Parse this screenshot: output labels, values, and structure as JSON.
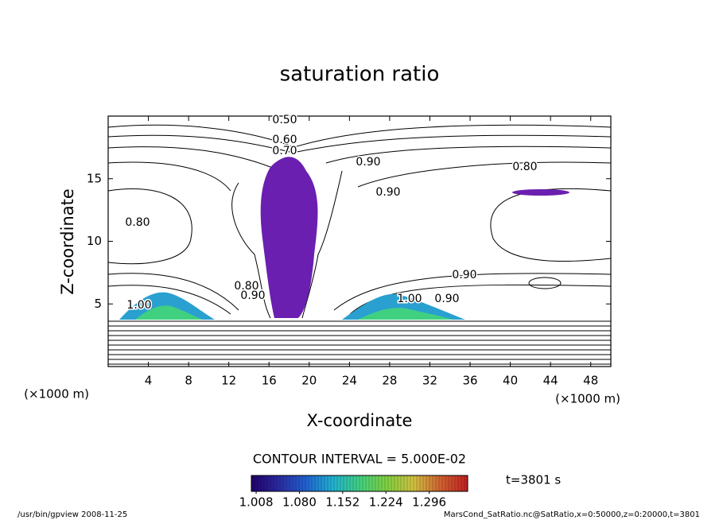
{
  "chart_data": {
    "type": "contour",
    "title": "saturation ratio",
    "x_label": "X-coordinate",
    "y_label": "Z-coordinate",
    "x_unit": "(×1000 m)",
    "y_unit": "(×1000 m)",
    "xlim": [
      0,
      50
    ],
    "ylim": [
      0,
      20
    ],
    "xticks": [
      4,
      8,
      12,
      16,
      20,
      24,
      28,
      32,
      36,
      40,
      44,
      48
    ],
    "yticks": [
      5,
      10,
      15
    ],
    "contour_labels": [
      "0.50",
      "0.60",
      "0.70",
      "0.90",
      "0.80",
      "0.90",
      "0.80",
      "0.90",
      "0.80",
      "0.90",
      "1.00",
      "1.00",
      "0.90"
    ],
    "contour_interval": "CONTOUR INTERVAL = 5.000E-02",
    "colorbar": {
      "clim": [
        1.0,
        1.36
      ],
      "colors": [
        "#20006a",
        "#2a2aa0",
        "#2060d0",
        "#20b0d0",
        "#40d080",
        "#80d040",
        "#d0c040",
        "#d06030",
        "#c02020"
      ],
      "ticks": [
        {
          "value": 1.008,
          "label": "1.008"
        },
        {
          "value": 1.08,
          "label": "1.080"
        },
        {
          "value": 1.152,
          "label": "1.152"
        },
        {
          "value": 1.224,
          "label": "1.224"
        },
        {
          "value": 1.296,
          "label": "1.296"
        }
      ]
    },
    "time_label": "t=3801 s",
    "footer_left": "/usr/bin/gpview  2008-11-25",
    "footer_right": "MarsCond_SatRatio.nc@SatRatio,x=0:50000,z=0:20000,t=3801"
  }
}
